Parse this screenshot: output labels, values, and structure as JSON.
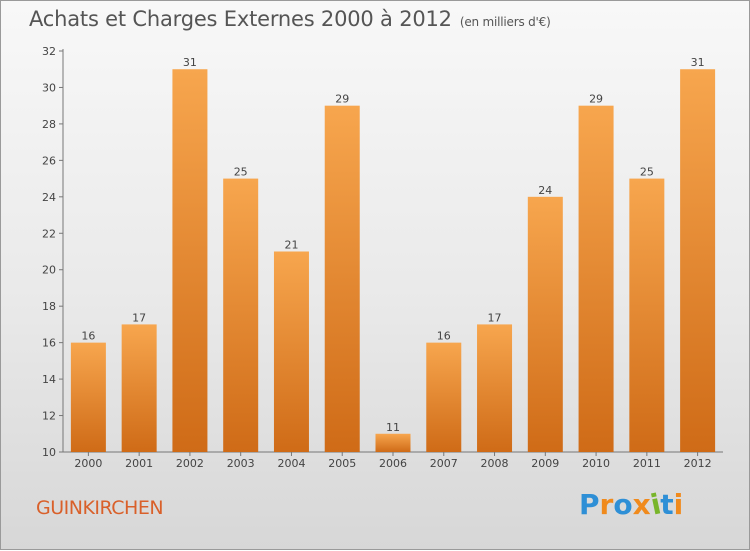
{
  "header": {
    "title": "Achats et Charges Externes 2000 à 2012",
    "subtitle": "(en milliers d'€)"
  },
  "footer": {
    "town": "GUINKIRCHEN",
    "logo": "Proxiti"
  },
  "colors": {
    "bar_light": "#f7a64e",
    "bar_dark": "#cf6b17",
    "town": "#d9602a",
    "logo_letters": [
      "#2e8fd6",
      "#f08a1c",
      "#2e8fd6",
      "#f08a1c",
      "#78b52a",
      "#2e8fd6",
      "#f08a1c"
    ]
  },
  "chart_data": {
    "type": "bar",
    "categories": [
      "2000",
      "2001",
      "2002",
      "2003",
      "2004",
      "2005",
      "2006",
      "2007",
      "2008",
      "2009",
      "2010",
      "2011",
      "2012"
    ],
    "values": [
      16,
      17,
      31,
      25,
      21,
      29,
      11,
      16,
      17,
      24,
      29,
      25,
      31
    ],
    "ylim": [
      10,
      32
    ],
    "yticks": [
      10,
      12,
      14,
      16,
      18,
      20,
      22,
      24,
      26,
      28,
      30,
      32
    ],
    "grid": false,
    "data_labels": true
  }
}
